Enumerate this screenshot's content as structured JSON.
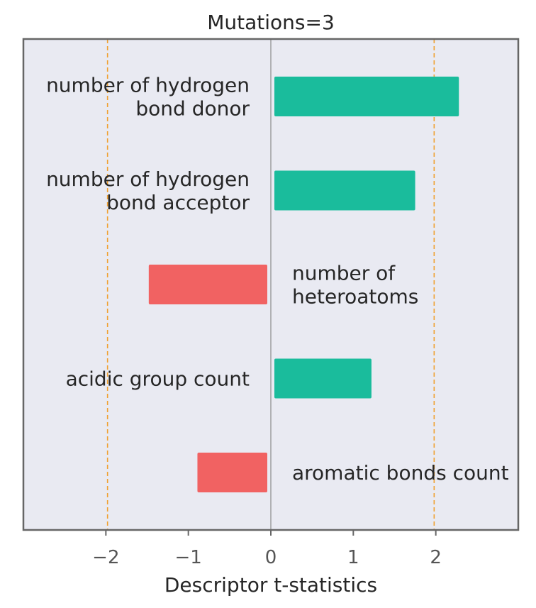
{
  "chart_data": {
    "type": "bar",
    "orientation": "horizontal",
    "title": "Mutations=3",
    "xlabel": "Descriptor t-statistics",
    "xlim": [
      -3,
      3
    ],
    "xticks": [
      -2,
      -1,
      0,
      1,
      2
    ],
    "xtick_labels": [
      "−2",
      "−1",
      "0",
      "1",
      "2"
    ],
    "threshold_lines": [
      -1.98,
      1.98
    ],
    "zero_line": 0,
    "grid": false,
    "categories": [
      "number of hydrogen\nbond donor",
      "number of hydrogen\nbond acceptor",
      "number of\nheteroatoms",
      "acidic group count",
      "aromatic bonds count"
    ],
    "values": [
      2.28,
      1.75,
      -1.48,
      1.22,
      -0.89
    ],
    "colors": {
      "positive": "#1abc9c",
      "negative": "#f16262",
      "threshold": "#f0a030",
      "zero_line": "#8c8c8c",
      "plot_background": "#e9eaf2",
      "frame": "#666666"
    }
  }
}
